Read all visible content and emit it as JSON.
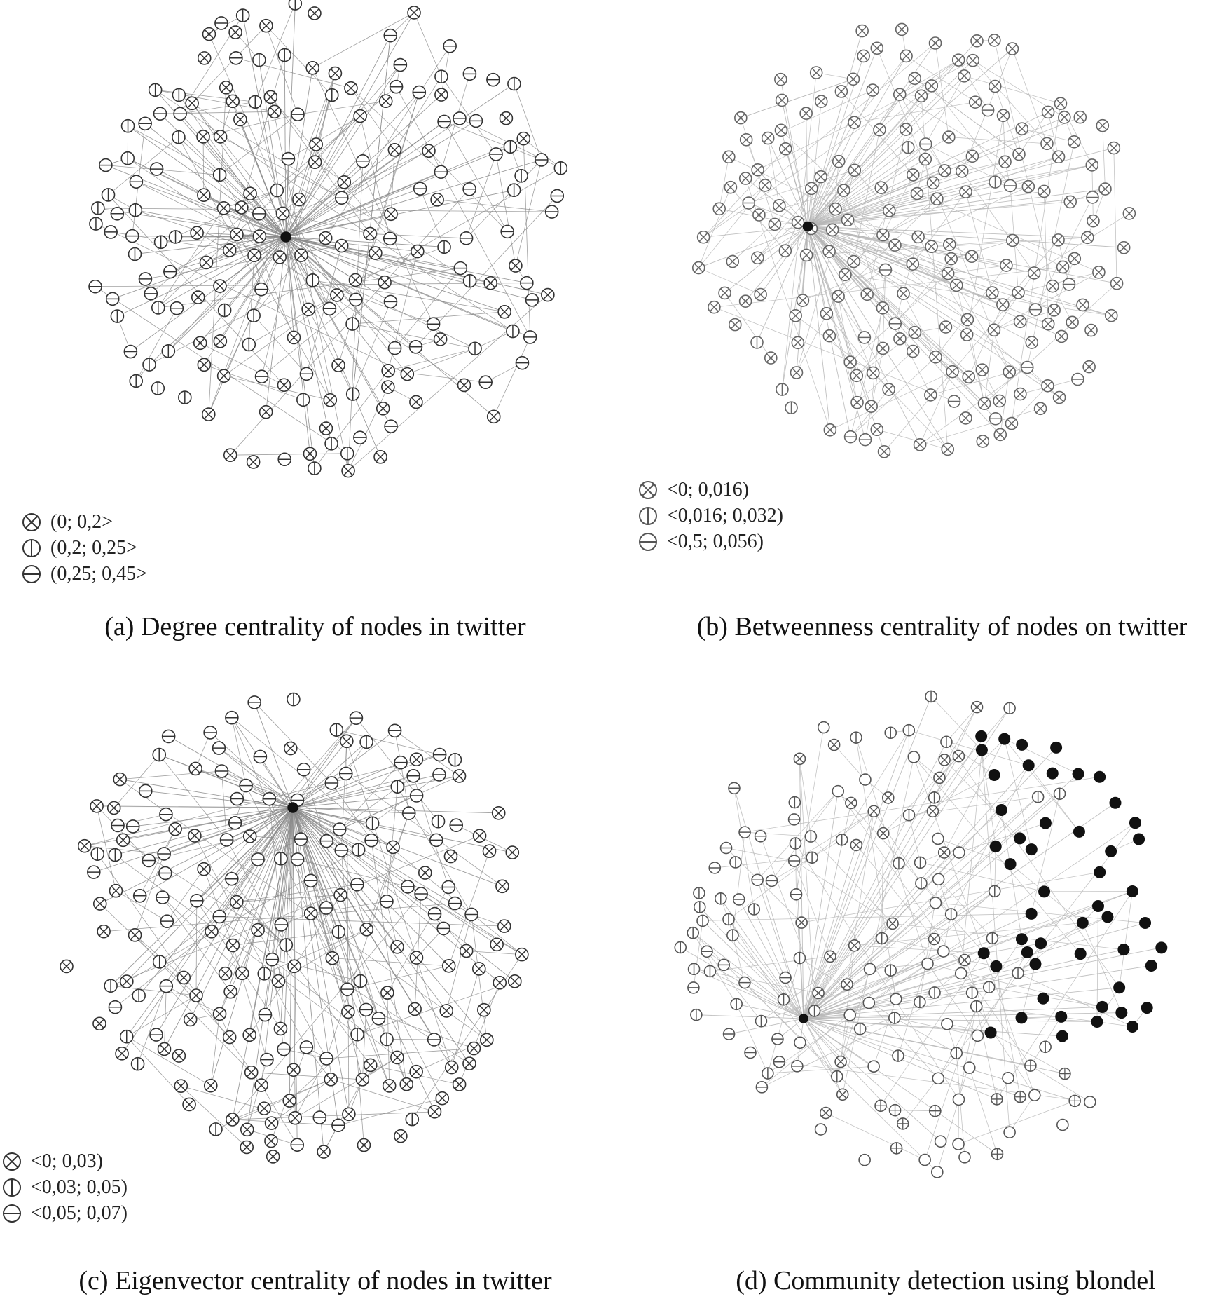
{
  "panels": [
    {
      "id": "a",
      "caption": "(a) Degree centrality of nodes in twitter",
      "legend": [
        {
          "symbol": "cross",
          "label": "(0; 0,2>"
        },
        {
          "symbol": "vbar",
          "label": "(0,2; 0,25>"
        },
        {
          "symbol": "hbar",
          "label": "(0,25; 0,45>"
        }
      ]
    },
    {
      "id": "b",
      "caption": "(b) Betweenness centrality of nodes on twitter",
      "legend": [
        {
          "symbol": "cross",
          "label": "<0; 0,016)"
        },
        {
          "symbol": "vbar",
          "label": "<0,016; 0,032)"
        },
        {
          "symbol": "hbar",
          "label": "<0,5; 0,056)"
        }
      ]
    },
    {
      "id": "c",
      "caption": "(c) Eigenvector centrality of nodes in twitter",
      "legend": [
        {
          "symbol": "cross",
          "label": "<0; 0,03)"
        },
        {
          "symbol": "vbar",
          "label": "<0,03; 0,05)"
        },
        {
          "symbol": "hbar",
          "label": "<0,05; 0,07)"
        }
      ]
    },
    {
      "id": "d",
      "caption": "(d) Community detection using blondel",
      "legend": []
    }
  ],
  "colors": {
    "edge": "#8a8a8a",
    "edge_light": "#b5b5b5",
    "node_stroke": "#333333",
    "node_fill": "#ffffff",
    "hub_fill": "#111111",
    "community_fill": "#111111"
  }
}
